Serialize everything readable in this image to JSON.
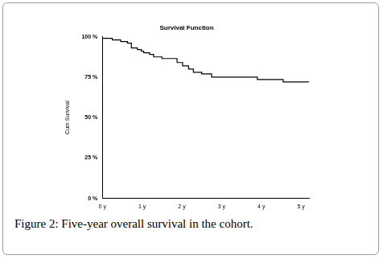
{
  "chart_data": {
    "type": "step",
    "title": "Survival Function",
    "caption": "Figure 2: Five-year overall survival in the cohort.",
    "y_label": "Cum Survival",
    "x": [
      0,
      0.25,
      0.46,
      0.63,
      0.73,
      0.88,
      0.98,
      1.04,
      1.19,
      1.29,
      1.5,
      1.88,
      2.02,
      2.17,
      2.29,
      2.5,
      2.75,
      3.9,
      4.55,
      4.62,
      5.2
    ],
    "values": [
      100,
      99,
      98,
      97,
      96,
      93,
      92,
      91,
      90,
      89,
      87.5,
      86.5,
      84,
      82,
      80,
      78,
      77,
      75,
      73.5,
      72,
      72
    ],
    "color": "#000000",
    "xlim": [
      0,
      5.2
    ],
    "xticks": [
      {
        "value": 0,
        "label": "0 y"
      },
      {
        "value": 1,
        "label": "1 y"
      },
      {
        "value": 2,
        "label": "2 y"
      },
      {
        "value": 3,
        "label": "3 y"
      },
      {
        "value": 4,
        "label": "4 y"
      },
      {
        "value": 5,
        "label": "5 y"
      }
    ],
    "ylim": [
      0,
      100
    ],
    "yticks": [
      {
        "value": 0,
        "label": "0 %"
      },
      {
        "value": 25,
        "label": "25 %"
      },
      {
        "value": 50,
        "label": "50 %"
      },
      {
        "value": 75,
        "label": "75 %"
      },
      {
        "value": 100,
        "label": "100 %"
      }
    ],
    "grid": false
  }
}
